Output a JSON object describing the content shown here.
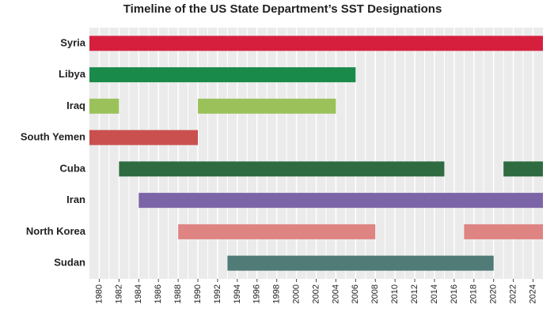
{
  "chart_data": {
    "type": "timeline",
    "title": "Timeline of the US State Department’s SST Designations",
    "categories": [
      "Syria",
      "Libya",
      "Iraq",
      "South Yemen",
      "Cuba",
      "Iran",
      "North Korea",
      "Sudan"
    ],
    "bars": [
      {
        "color": "#d51f3d",
        "segments": [
          [
            1979,
            2025
          ]
        ]
      },
      {
        "color": "#1a8a4a",
        "segments": [
          [
            1979,
            2006
          ]
        ]
      },
      {
        "color": "#9bc25a",
        "segments": [
          [
            1979,
            1982
          ],
          [
            1990,
            2004
          ]
        ]
      },
      {
        "color": "#c9504e",
        "segments": [
          [
            1979,
            1990
          ]
        ]
      },
      {
        "color": "#2f6b40",
        "segments": [
          [
            1982,
            2015
          ],
          [
            2021,
            2025
          ]
        ]
      },
      {
        "color": "#7b65a7",
        "segments": [
          [
            1984,
            2025
          ]
        ]
      },
      {
        "color": "#de8482",
        "segments": [
          [
            1988,
            2008
          ],
          [
            2017,
            2025
          ]
        ]
      },
      {
        "color": "#507b77",
        "segments": [
          [
            1993,
            2020
          ]
        ]
      }
    ],
    "xlim": [
      1979,
      2025
    ],
    "xticks": [
      1980,
      1982,
      1984,
      1986,
      1988,
      1990,
      1992,
      1994,
      1996,
      1998,
      2000,
      2002,
      2004,
      2006,
      2008,
      2010,
      2012,
      2014,
      2016,
      2018,
      2020,
      2022,
      2024
    ],
    "xminorticks": [
      1981,
      1983,
      1985,
      1987,
      1989,
      1991,
      1993,
      1995,
      1997,
      1999,
      2001,
      2003,
      2005,
      2007,
      2009,
      2011,
      2013,
      2015,
      2017,
      2019,
      2021,
      2023
    ],
    "grid": true
  }
}
